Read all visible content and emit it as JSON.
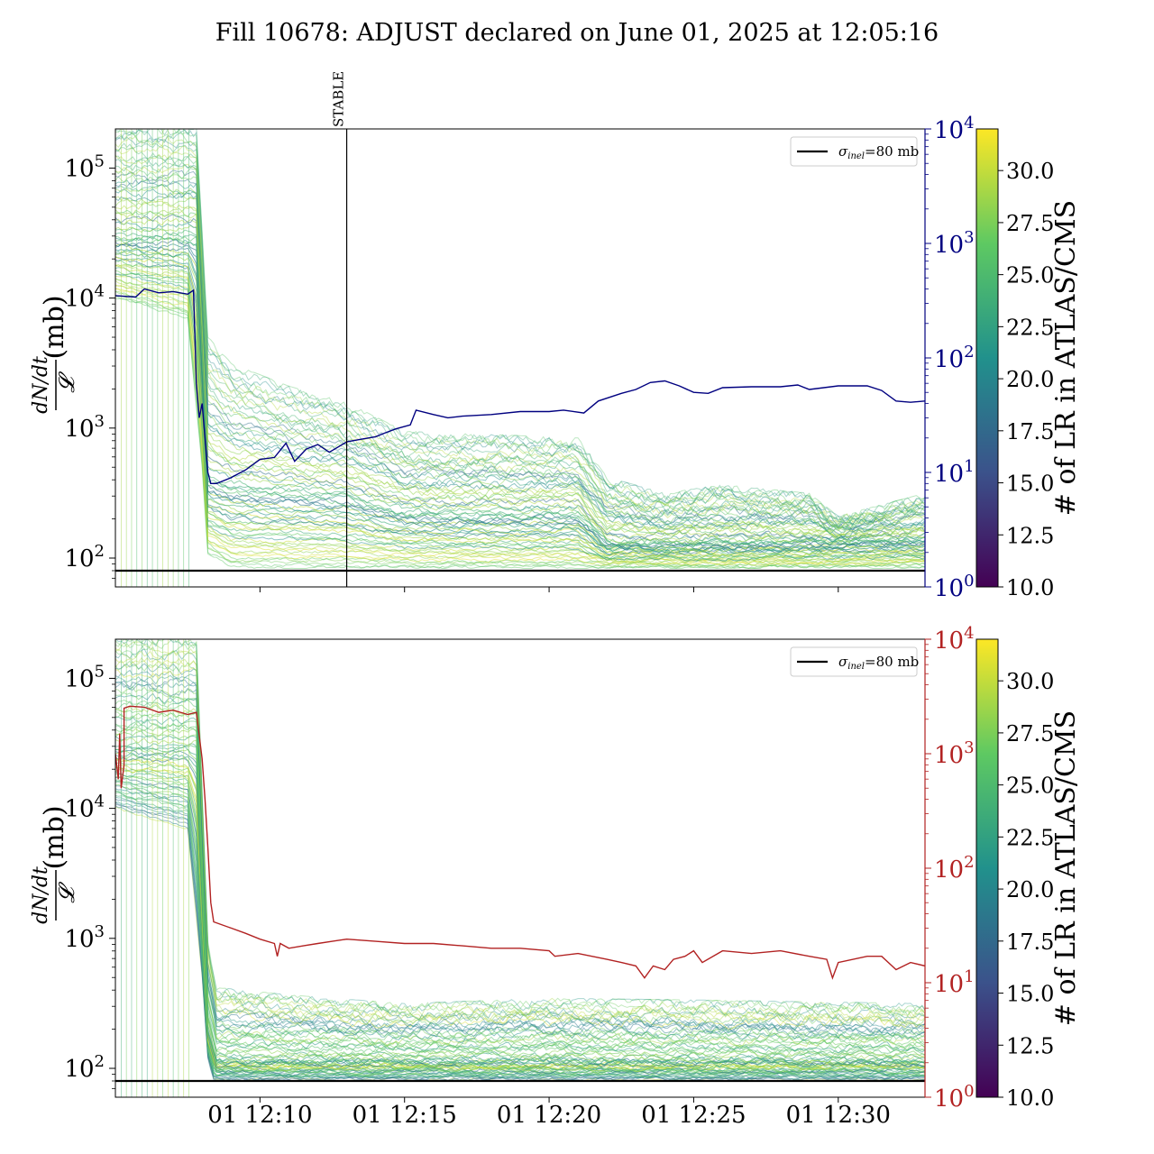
{
  "title": "Fill 10678: ADJUST declared on June 01, 2025 at 12:05:16",
  "colors": {
    "blue_trace": "#000080",
    "red_trace": "#b22222",
    "reference_line": "#000000",
    "colormap": [
      "#440154",
      "#3b528b",
      "#21918c",
      "#5ec962",
      "#fde725"
    ]
  },
  "chart_data": [
    {
      "type": "line",
      "panel": "top",
      "ylabel": "dN/dt / 𝓛 (mb)",
      "ylabel_num": "dN/dt",
      "ylabel_den": "𝓛",
      "ylabel_unit": "(mb)",
      "y_scale": "log",
      "ylim": [
        60,
        200000
      ],
      "y_ticks": [
        "10^5",
        "10^4",
        "10^3",
        "10^2"
      ],
      "y2_scale": "log",
      "y2lim": [
        1,
        10000
      ],
      "y2_ticks": [
        "10^4",
        "10^3",
        "10^2",
        "10^1",
        "10^0"
      ],
      "x_unit": "minutes after 12:05",
      "xlim": [
        0,
        28
      ],
      "x_ticks_shown": false,
      "marker": {
        "label": "STABLE",
        "x": 8.0
      },
      "legend": {
        "label": "σinel=80 mb",
        "sym": "σ",
        "sub": "inel",
        "rest": "=80 mb",
        "position": "top-right"
      },
      "reference_line": {
        "value": 80
      },
      "series_secondary": {
        "color": "blue",
        "points": [
          [
            0,
            35
          ],
          [
            0.7,
            34
          ],
          [
            1,
            40
          ],
          [
            1.5,
            37
          ],
          [
            2,
            38
          ],
          [
            2.5,
            36
          ],
          [
            2.7,
            39
          ],
          [
            2.8,
            6
          ],
          [
            2.9,
            3
          ],
          [
            3.0,
            4
          ],
          [
            3.2,
            1.0
          ],
          [
            3.3,
            0.8
          ],
          [
            3.5,
            0.8
          ],
          [
            4,
            0.9
          ],
          [
            4.5,
            1.05
          ],
          [
            5,
            1.3
          ],
          [
            5.5,
            1.35
          ],
          [
            5.9,
            1.8
          ],
          [
            6.2,
            1.25
          ],
          [
            6.6,
            1.6
          ],
          [
            7,
            1.75
          ],
          [
            7.4,
            1.5
          ],
          [
            8,
            1.85
          ],
          [
            8.5,
            1.95
          ],
          [
            9,
            2.05
          ],
          [
            9.3,
            2.2
          ],
          [
            9.7,
            2.4
          ],
          [
            10.2,
            2.6
          ],
          [
            10.4,
            3.5
          ],
          [
            11,
            3.2
          ],
          [
            11.5,
            3.0
          ],
          [
            12,
            3.1
          ],
          [
            13,
            3.2
          ],
          [
            14,
            3.4
          ],
          [
            15,
            3.4
          ],
          [
            15.5,
            3.5
          ],
          [
            16.2,
            3.3
          ],
          [
            16.7,
            4.2
          ],
          [
            17.5,
            4.9
          ],
          [
            18,
            5.3
          ],
          [
            18.5,
            6.1
          ],
          [
            19,
            6.3
          ],
          [
            19.5,
            5.7
          ],
          [
            20,
            5.0
          ],
          [
            20.5,
            4.9
          ],
          [
            21,
            5.5
          ],
          [
            22,
            5.6
          ],
          [
            23,
            5.6
          ],
          [
            23.6,
            5.8
          ],
          [
            24,
            5.3
          ],
          [
            25,
            5.7
          ],
          [
            26,
            5.7
          ],
          [
            26.5,
            5.2
          ],
          [
            27,
            4.2
          ],
          [
            27.5,
            4.1
          ],
          [
            28,
            4.2
          ]
        ],
        "note": "values as mantissa x 10^1 where 1.0 means 10^1; see y2 axis"
      },
      "bands": {
        "description": "colored per-bunch traces, color = # of LR in ATLAS/CMS",
        "lower": [
          [
            0,
            10000
          ],
          [
            2.5,
            7000
          ],
          [
            3.0,
            500
          ],
          [
            3.2,
            110
          ],
          [
            4,
            85
          ],
          [
            8,
            85
          ],
          [
            28,
            85
          ]
        ],
        "upper": [
          [
            0,
            200000
          ],
          [
            2.8,
            200000
          ],
          [
            3.2,
            5000
          ],
          [
            4,
            3000
          ],
          [
            6,
            2000
          ],
          [
            8,
            1500
          ],
          [
            10,
            900
          ],
          [
            16,
            800
          ],
          [
            17,
            400
          ],
          [
            19,
            300
          ],
          [
            21,
            350
          ],
          [
            24,
            300
          ],
          [
            25,
            200
          ],
          [
            28,
            300
          ]
        ],
        "center": [
          [
            0,
            30000
          ],
          [
            2.8,
            30000
          ],
          [
            3.2,
            400
          ],
          [
            4,
            350
          ],
          [
            8,
            300
          ],
          [
            10,
            220
          ],
          [
            16,
            220
          ],
          [
            17,
            130
          ],
          [
            20,
            130
          ],
          [
            28,
            140
          ]
        ]
      }
    },
    {
      "type": "line",
      "panel": "bottom",
      "ylabel": "dN/dt / 𝓛 (mb)",
      "ylabel_num": "dN/dt",
      "ylabel_den": "𝓛",
      "ylabel_unit": "(mb)",
      "y_scale": "log",
      "ylim": [
        60,
        200000
      ],
      "y_ticks": [
        "10^5",
        "10^4",
        "10^3",
        "10^2"
      ],
      "y2_scale": "log",
      "y2lim": [
        1,
        10000
      ],
      "y2_ticks": [
        "10^4",
        "10^3",
        "10^2",
        "10^1",
        "10^0"
      ],
      "x_unit": "minutes after 12:05",
      "xlim": [
        0,
        28
      ],
      "x_ticks": [
        {
          "value": 5,
          "label": "01 12:10"
        },
        {
          "value": 10,
          "label": "01 12:15"
        },
        {
          "value": 15,
          "label": "01 12:20"
        },
        {
          "value": 20,
          "label": "01 12:25"
        },
        {
          "value": 25,
          "label": "01 12:30"
        }
      ],
      "legend": {
        "label": "σinel=80 mb",
        "sym": "σ",
        "sub": "inel",
        "rest": "=80 mb",
        "position": "top-right"
      },
      "reference_line": {
        "value": 80
      },
      "series_secondary": {
        "color": "red",
        "points": [
          [
            0,
            1000
          ],
          [
            0.1,
            600
          ],
          [
            0.15,
            1500
          ],
          [
            0.2,
            500
          ],
          [
            0.3,
            800
          ],
          [
            0.3,
            2500
          ],
          [
            0.5,
            2600
          ],
          [
            1,
            2550
          ],
          [
            1.5,
            2300
          ],
          [
            2,
            2400
          ],
          [
            2.5,
            2200
          ],
          [
            2.8,
            2300
          ],
          [
            3.0,
            900
          ],
          [
            3.1,
            400
          ],
          [
            3.2,
            150
          ],
          [
            3.3,
            50
          ],
          [
            3.4,
            34
          ],
          [
            4,
            30
          ],
          [
            4.5,
            27
          ],
          [
            5,
            24
          ],
          [
            5.5,
            22
          ],
          [
            5.6,
            17
          ],
          [
            5.7,
            22
          ],
          [
            6,
            20
          ],
          [
            6.5,
            21
          ],
          [
            7,
            22
          ],
          [
            7.5,
            23
          ],
          [
            8,
            24
          ],
          [
            9,
            23
          ],
          [
            10,
            22
          ],
          [
            11,
            22
          ],
          [
            12,
            21
          ],
          [
            13,
            20
          ],
          [
            14,
            20
          ],
          [
            15,
            19
          ],
          [
            15.2,
            17
          ],
          [
            16,
            18
          ],
          [
            17,
            16
          ],
          [
            17.5,
            15
          ],
          [
            18,
            14
          ],
          [
            18.3,
            11
          ],
          [
            18.6,
            14
          ],
          [
            19,
            13
          ],
          [
            19.3,
            16
          ],
          [
            19.7,
            17
          ],
          [
            20,
            19
          ],
          [
            20.3,
            15
          ],
          [
            21,
            19
          ],
          [
            22,
            18
          ],
          [
            23,
            19
          ],
          [
            24,
            17
          ],
          [
            24.6,
            16
          ],
          [
            24.8,
            11
          ],
          [
            25,
            15
          ],
          [
            26,
            17
          ],
          [
            26.5,
            17
          ],
          [
            27,
            13
          ],
          [
            27.5,
            15
          ],
          [
            28,
            14
          ]
        ]
      },
      "bands": {
        "description": "colored per-bunch traces, color = # of LR in ATLAS/CMS",
        "lower": [
          [
            0,
            10000
          ],
          [
            2.5,
            7000
          ],
          [
            3.0,
            500
          ],
          [
            3.2,
            120
          ],
          [
            3.4,
            82
          ],
          [
            8,
            82
          ],
          [
            28,
            82
          ]
        ],
        "upper": [
          [
            0,
            200000
          ],
          [
            2.8,
            200000
          ],
          [
            3.2,
            1000
          ],
          [
            3.5,
            400
          ],
          [
            6,
            350
          ],
          [
            10,
            300
          ],
          [
            15,
            330
          ],
          [
            20,
            320
          ],
          [
            28,
            300
          ]
        ],
        "center": [
          [
            0,
            30000
          ],
          [
            2.8,
            30000
          ],
          [
            3.2,
            200
          ],
          [
            3.5,
            115
          ],
          [
            28,
            115
          ]
        ]
      }
    }
  ],
  "colorbars": [
    {
      "panel": "top",
      "label": "# of LR in ATLAS/CMS",
      "range": [
        10.0,
        32.0
      ],
      "ticks": [
        "10.0",
        "12.5",
        "15.0",
        "17.5",
        "20.0",
        "22.5",
        "25.0",
        "27.5",
        "30.0"
      ]
    },
    {
      "panel": "bottom",
      "label": "# of LR in ATLAS/CMS",
      "range": [
        10.0,
        32.0
      ],
      "ticks": [
        "10.0",
        "12.5",
        "15.0",
        "17.5",
        "20.0",
        "22.5",
        "25.0",
        "27.5",
        "30.0"
      ]
    }
  ]
}
